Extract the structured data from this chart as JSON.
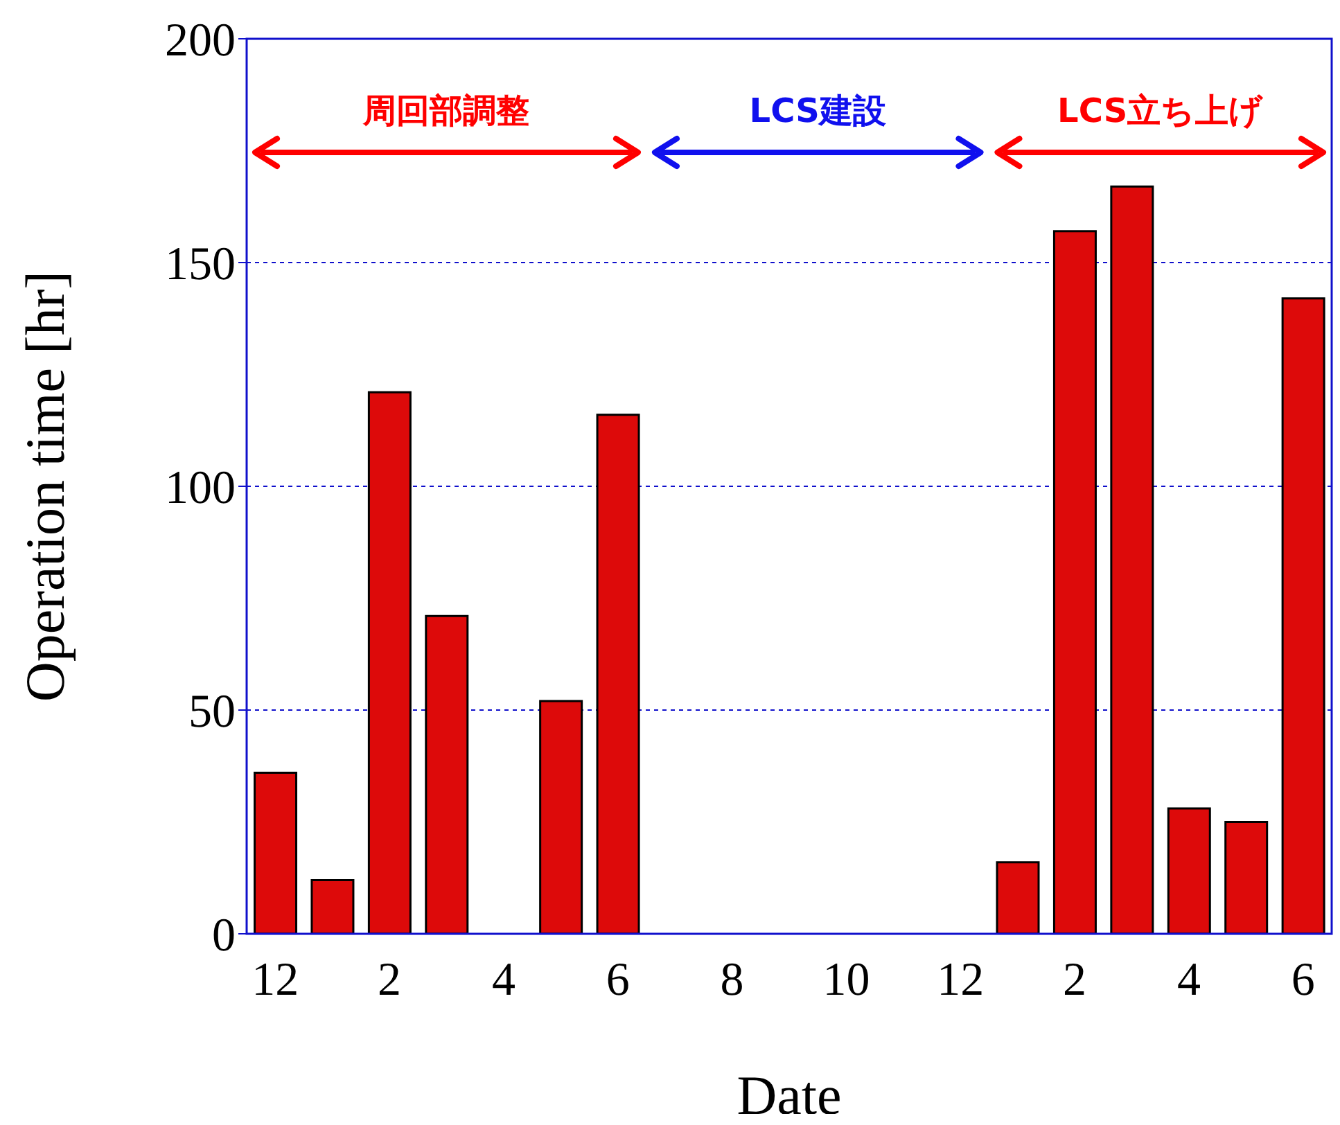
{
  "chart_data": {
    "type": "bar",
    "xlabel": "Date",
    "ylabel": "Operation time [hr]",
    "categories": [
      "12",
      null,
      "2",
      null,
      "4",
      null,
      "6",
      null,
      "8",
      null,
      "10",
      null,
      "12",
      null,
      "2",
      null,
      "4",
      null,
      "6"
    ],
    "values": [
      36,
      12,
      121,
      71,
      0,
      52,
      116,
      0,
      0,
      0,
      0,
      0,
      0,
      16,
      157,
      167,
      28,
      25,
      142
    ],
    "color": "#dd0a0a",
    "ylim": [
      0,
      200
    ],
    "yticks": [
      0,
      50,
      100,
      150,
      200
    ],
    "grid": "y",
    "annotations": [
      "周回部調整",
      "LCS建設",
      "LCS立ち上げ"
    ]
  }
}
